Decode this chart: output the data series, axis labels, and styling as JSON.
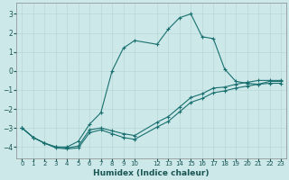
{
  "xlabel": "Humidex (Indice chaleur)",
  "bg_color": "#cce8e8",
  "line_color": "#1a7070",
  "grid_color": "#b8d8d8",
  "xlim": [
    -0.5,
    23.5
  ],
  "ylim": [
    -4.6,
    3.6
  ],
  "yticks": [
    -4,
    -3,
    -2,
    -1,
    0,
    1,
    2,
    3
  ],
  "xtick_positions": [
    0,
    1,
    2,
    3,
    4,
    5,
    6,
    7,
    8,
    9,
    10,
    12,
    13,
    14,
    15,
    16,
    17,
    18,
    19,
    20,
    21,
    22,
    23
  ],
  "xtick_labels": [
    "0",
    "1",
    "2",
    "3",
    "4",
    "5",
    "6",
    "7",
    "8",
    "9",
    "10",
    "12",
    "13",
    "14",
    "15",
    "16",
    "17",
    "18",
    "19",
    "20",
    "21",
    "22",
    "23"
  ],
  "line1_x": [
    0,
    1,
    2,
    3,
    4,
    5,
    6,
    7,
    8,
    9,
    10,
    12,
    13,
    14,
    15,
    16,
    17,
    18,
    19,
    20,
    21,
    22,
    23
  ],
  "line1_y": [
    -3.0,
    -3.5,
    -3.8,
    -4.0,
    -4.0,
    -3.7,
    -2.8,
    -2.2,
    0.0,
    1.2,
    1.6,
    1.4,
    2.2,
    2.8,
    3.0,
    1.8,
    1.7,
    0.1,
    -0.55,
    -0.65,
    -0.7,
    -0.55,
    -0.55
  ],
  "line2_x": [
    0,
    1,
    2,
    3,
    4,
    5,
    6,
    7,
    8,
    9,
    10,
    12,
    13,
    14,
    15,
    16,
    17,
    18,
    19,
    20,
    21,
    22,
    23
  ],
  "line2_y": [
    -3.0,
    -3.5,
    -3.8,
    -4.0,
    -4.05,
    -3.95,
    -3.1,
    -3.0,
    -3.15,
    -3.3,
    -3.4,
    -2.7,
    -2.4,
    -1.9,
    -1.4,
    -1.2,
    -0.9,
    -0.85,
    -0.7,
    -0.6,
    -0.5,
    -0.5,
    -0.5
  ],
  "line3_x": [
    0,
    1,
    2,
    3,
    4,
    5,
    6,
    7,
    8,
    9,
    10,
    12,
    13,
    14,
    15,
    16,
    17,
    18,
    19,
    20,
    21,
    22,
    23
  ],
  "line3_y": [
    -3.0,
    -3.5,
    -3.8,
    -4.05,
    -4.1,
    -4.05,
    -3.25,
    -3.1,
    -3.3,
    -3.5,
    -3.6,
    -2.95,
    -2.65,
    -2.15,
    -1.65,
    -1.45,
    -1.15,
    -1.05,
    -0.9,
    -0.8,
    -0.7,
    -0.65,
    -0.65
  ]
}
